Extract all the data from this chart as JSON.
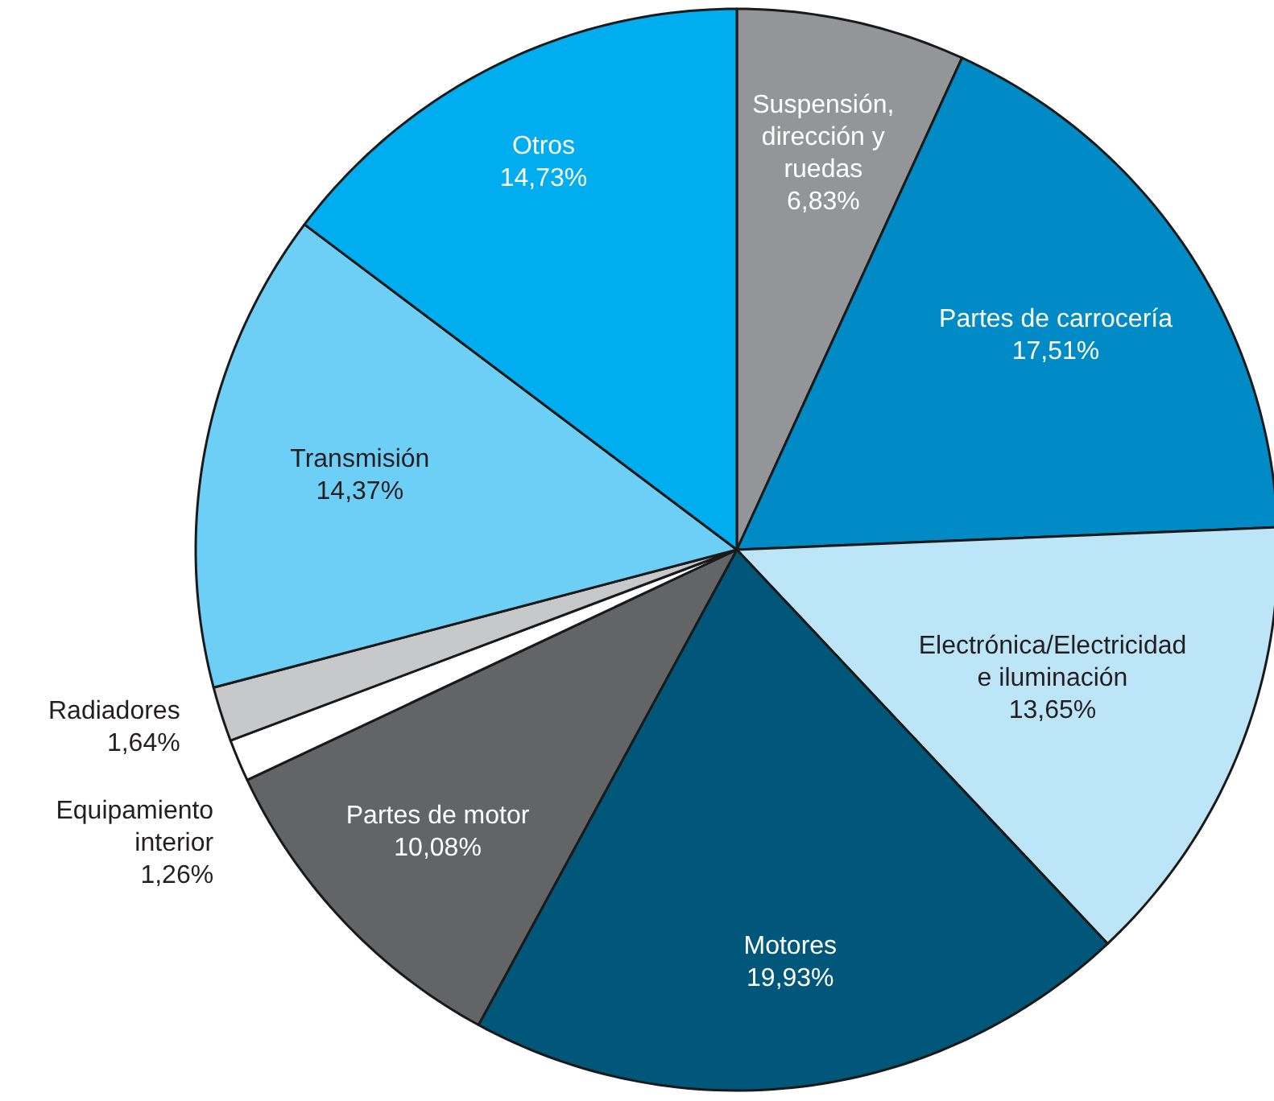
{
  "chart_data": {
    "type": "pie",
    "categories": [
      "Suspensión, dirección y ruedas",
      "Partes de carrocería",
      "Electrónica/Electricidad e iluminación",
      "Motores",
      "Partes de motor",
      "Equipamiento interior",
      "Radiadores",
      "Transmisión",
      "Otros"
    ],
    "values": [
      6.83,
      17.51,
      13.65,
      19.93,
      10.08,
      1.26,
      1.64,
      14.37,
      14.73
    ],
    "value_labels": [
      "6,83%",
      "17,51%",
      "13,65%",
      "19,93%",
      "10,08%",
      "1,26%",
      "1,64%",
      "14,37%",
      "14,73%"
    ],
    "colors": [
      "#939598",
      "#008bc6",
      "#bde5f8",
      "#00577a",
      "#636466",
      "#ffffff",
      "#c7c8ca",
      "#6dcff6",
      "#00aeef"
    ]
  }
}
